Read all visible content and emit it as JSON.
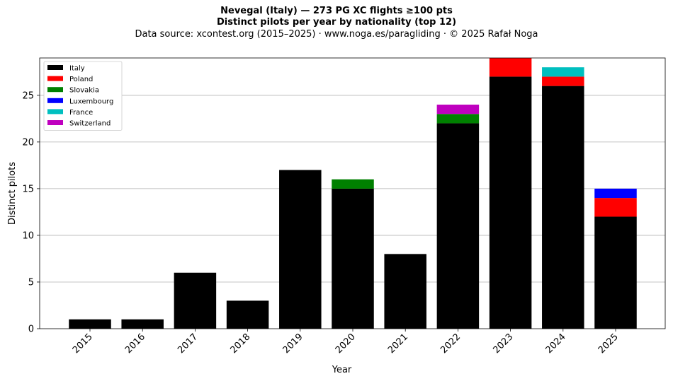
{
  "title": "Nevegal (Italy)  —  273 PG XC flights ≥100 pts",
  "subtitle": "Distinct pilots per year by nationality (top 12)",
  "source_line": "Data source: xcontest.org (2015–2025)  ·  www.noga.es/paragliding  ·  © 2025 Rafał Noga",
  "chart_data": {
    "type": "bar",
    "stacked": true,
    "xlabel": "Year",
    "ylabel": "Distinct pilots",
    "ylim": [
      0,
      29
    ],
    "yticks": [
      0,
      5,
      10,
      15,
      20,
      25
    ],
    "grid": "horizontal",
    "legend_position": "top-left",
    "categories": [
      "2015",
      "2016",
      "2017",
      "2018",
      "2019",
      "2020",
      "2021",
      "2022",
      "2023",
      "2024",
      "2025"
    ],
    "series": [
      {
        "name": "Italy",
        "color": "#000000",
        "values": [
          1,
          1,
          6,
          3,
          17,
          15,
          8,
          22,
          27,
          26,
          12
        ]
      },
      {
        "name": "Poland",
        "color": "#ff0000",
        "values": [
          0,
          0,
          0,
          0,
          0,
          0,
          0,
          0,
          2,
          1,
          2
        ]
      },
      {
        "name": "Slovakia",
        "color": "#008000",
        "values": [
          0,
          0,
          0,
          0,
          0,
          1,
          0,
          1,
          0,
          0,
          0
        ]
      },
      {
        "name": "Luxembourg",
        "color": "#0000ff",
        "values": [
          0,
          0,
          0,
          0,
          0,
          0,
          0,
          0,
          0,
          0,
          1
        ]
      },
      {
        "name": "France",
        "color": "#00bfbf",
        "values": [
          0,
          0,
          0,
          0,
          0,
          0,
          0,
          0,
          0,
          1,
          0
        ]
      },
      {
        "name": "Switzerland",
        "color": "#bf00bf",
        "values": [
          0,
          0,
          0,
          0,
          0,
          0,
          0,
          1,
          0,
          0,
          0
        ]
      }
    ]
  }
}
